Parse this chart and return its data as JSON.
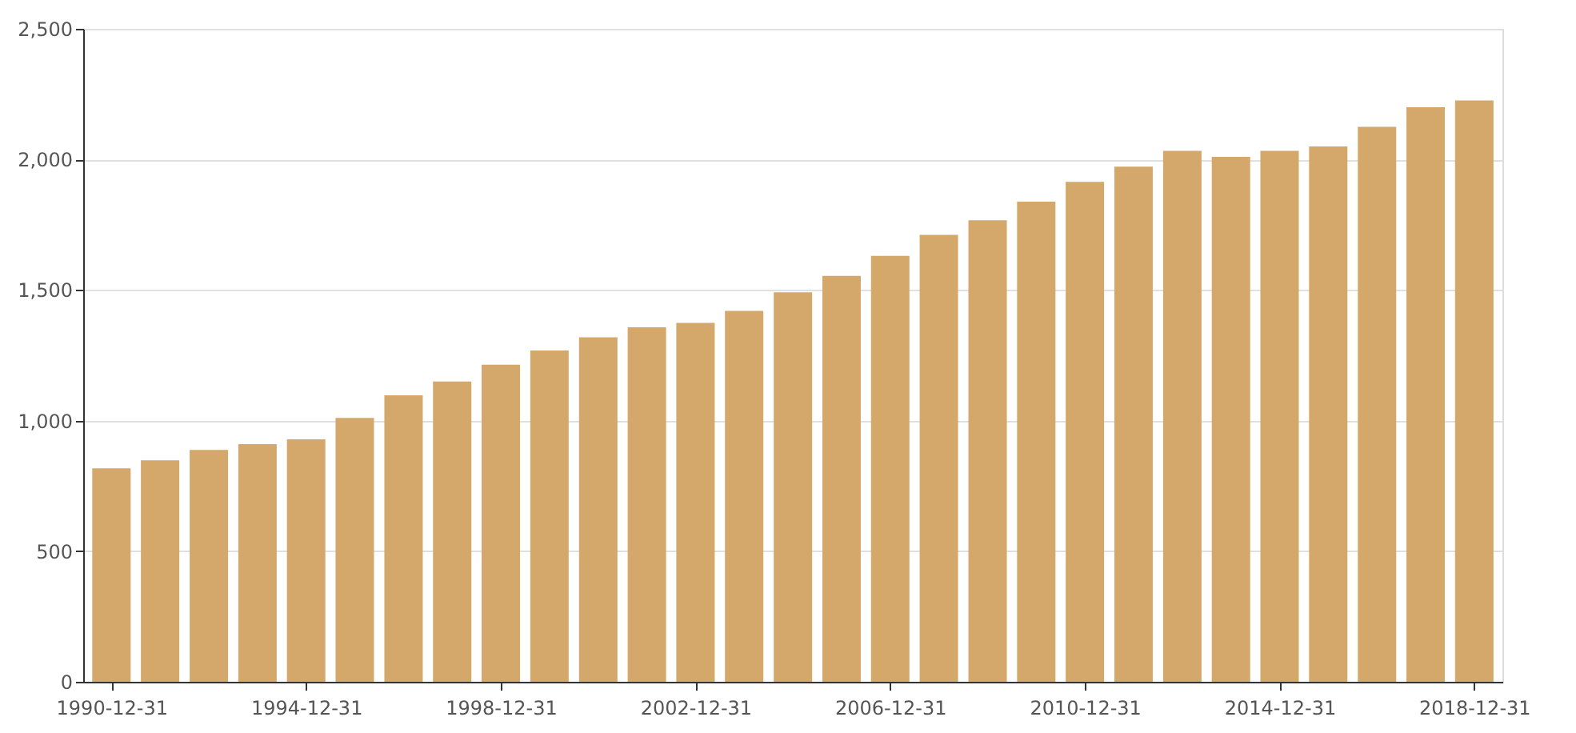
{
  "chart_data": {
    "type": "bar",
    "x": [
      "1990-12-31",
      "1991-12-31",
      "1992-12-31",
      "1993-12-31",
      "1994-12-31",
      "1995-12-31",
      "1996-12-31",
      "1997-12-31",
      "1998-12-31",
      "1999-12-31",
      "2000-12-31",
      "2001-12-31",
      "2002-12-31",
      "2003-12-31",
      "2004-12-31",
      "2005-12-31",
      "2006-12-31",
      "2007-12-31",
      "2008-12-31",
      "2009-12-31",
      "2010-12-31",
      "2011-12-31",
      "2012-12-31",
      "2013-12-31",
      "2014-12-31",
      "2015-12-31",
      "2016-12-31",
      "2017-12-31",
      "2018-12-31"
    ],
    "values": [
      817,
      848,
      888,
      910,
      928,
      1010,
      1097,
      1150,
      1214,
      1268,
      1319,
      1357,
      1374,
      1420,
      1491,
      1554,
      1631,
      1711,
      1767,
      1838,
      1914,
      1972,
      2033,
      2010,
      2033,
      2050,
      2125,
      2200,
      2226
    ],
    "color": "#d4a76a",
    "xlim": [
      "1990-08-01",
      "2019-05-31"
    ],
    "xticks": [
      "1990-12-31",
      "1994-12-31",
      "1998-12-31",
      "2002-12-31",
      "2006-12-31",
      "2010-12-31",
      "2014-12-31",
      "2018-12-31"
    ],
    "ylim": [
      0,
      2500
    ],
    "yticks": [
      {
        "value": 0,
        "label": "0"
      },
      {
        "value": 500,
        "label": "500"
      },
      {
        "value": 1000,
        "label": "1,000"
      },
      {
        "value": 1500,
        "label": "1,500"
      },
      {
        "value": 2000,
        "label": "2,000"
      },
      {
        "value": 2500,
        "label": "2,500"
      }
    ],
    "grid": "y"
  }
}
